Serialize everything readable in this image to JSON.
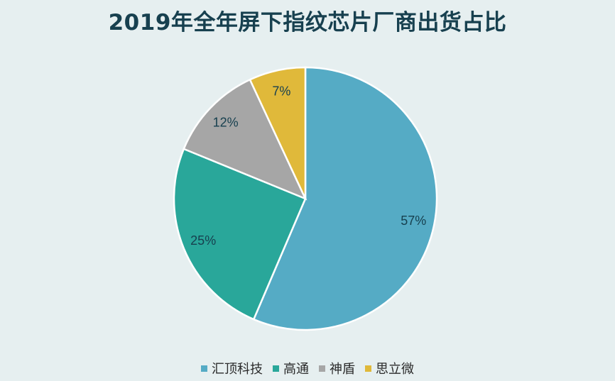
{
  "title": "2019年全年屏下指纹芯片厂商出货占比",
  "colors": {
    "background": "#e6eff0",
    "title": "#17404f"
  },
  "chart_data": {
    "type": "pie",
    "title": "2019年全年屏下指纹芯片厂商出货占比",
    "categories": [
      "汇顶科技",
      "高通",
      "神盾",
      "思立微"
    ],
    "values": [
      57,
      25,
      12,
      7
    ],
    "labels": [
      "57%",
      "25%",
      "12%",
      "7%"
    ],
    "colors": [
      "#55abc5",
      "#29a79a",
      "#a6a6a6",
      "#e0b93a"
    ],
    "legend_position": "bottom"
  }
}
